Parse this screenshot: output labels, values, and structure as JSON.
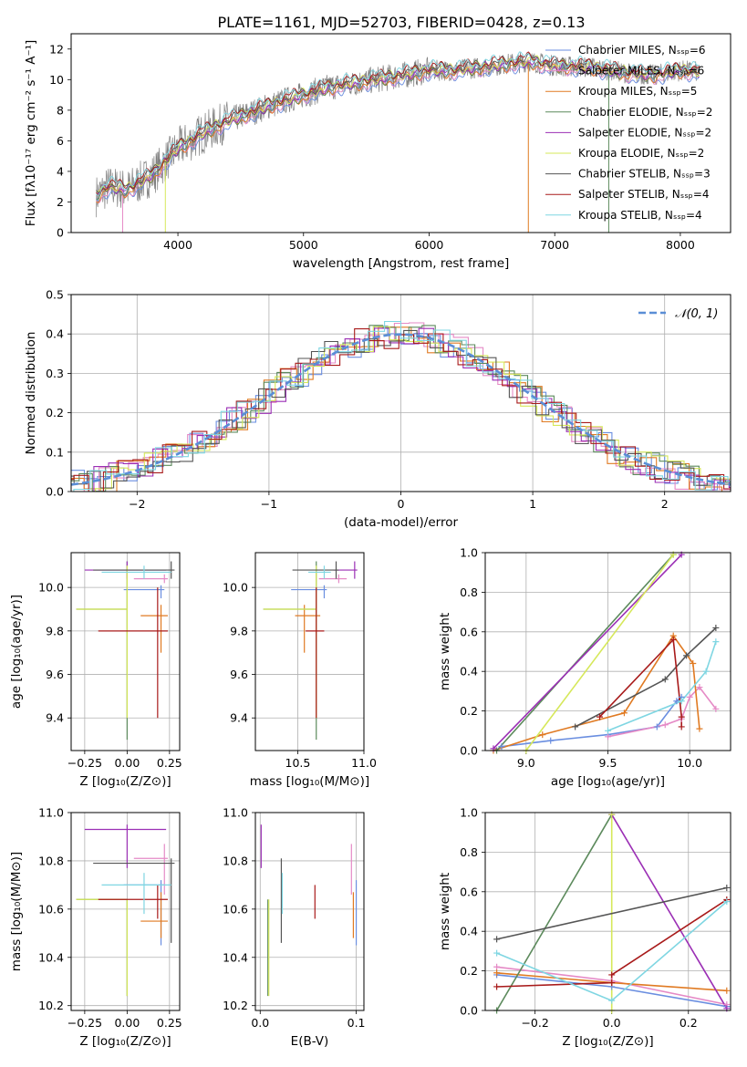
{
  "colors": {
    "chabrier_miles": "#6a8ee0",
    "salpeter_miles": "#e58ac6",
    "kroupa_miles": "#e07a22",
    "chabrier_elodie": "#5c8a5c",
    "salpeter_elodie": "#9b2fb5",
    "kroupa_elodie": "#d6e85a",
    "chabrier_stelib": "#555555",
    "salpeter_stelib": "#a81a1a",
    "kroupa_stelib": "#7fd6e2",
    "data": "#808080",
    "normal": "#5a8ed6"
  },
  "chart_data": [
    {
      "id": "spectrum",
      "type": "line",
      "title": "PLATE=1161, MJD=52703, FIBERID=0428, z=0.13",
      "xlabel": "wavelength [Angstrom, rest frame]",
      "ylabel": "Flux [fλ10⁻¹⁷ erg cm⁻² s⁻¹ A⁻¹]",
      "xlim": [
        3150,
        8400
      ],
      "ylim": [
        0,
        13
      ],
      "xticks": [
        "4000",
        "5000",
        "6000",
        "7000",
        "8000"
      ],
      "yticks": [
        "0",
        "2",
        "4",
        "6",
        "8",
        "10",
        "12"
      ],
      "legend": [
        "Chabrier MILES, Nₛₛₚ=6",
        "Salpeter MILES, Nₛₛₚ=6",
        "Kroupa MILES, Nₛₛₚ=5",
        "Chabrier ELODIE, Nₛₛₚ=2",
        "Salpeter ELODIE, Nₛₛₚ=2",
        "Kroupa ELODIE, Nₛₛₚ=2",
        "Chabrier STELIB, Nₛₛₚ=3",
        "Salpeter STELIB, Nₛₛₚ=4",
        "Kroupa STELIB, Nₛₛₚ=4"
      ],
      "legend_placement": "right",
      "continuum": {
        "x": [
          3350,
          3450,
          3600,
          3800,
          4000,
          4200,
          4400,
          4600,
          4800,
          5000,
          5200,
          5500,
          5800,
          6000,
          6200,
          6500,
          6800,
          7000,
          7300,
          7600,
          7800,
          8000,
          8150
        ],
        "y": [
          2.4,
          3.0,
          2.8,
          3.8,
          5.5,
          6.5,
          7.3,
          7.9,
          8.5,
          9.0,
          9.5,
          9.9,
          10.3,
          10.6,
          10.6,
          10.9,
          11.2,
          10.9,
          10.8,
          10.4,
          10.3,
          10.6,
          10.5
        ]
      }
    },
    {
      "id": "residuals",
      "type": "histogram",
      "xlabel": "(data-model)/error",
      "ylabel": "Normed distribution",
      "xlim": [
        -2.5,
        2.5
      ],
      "ylim": [
        0,
        0.5
      ],
      "xticks": [
        "−2",
        "−1",
        "0",
        "1",
        "2"
      ],
      "yticks": [
        "0.0",
        "0.1",
        "0.2",
        "0.3",
        "0.4",
        "0.5"
      ],
      "legend": [
        "𝒩(0, 1)"
      ],
      "legend_placement": "top-right",
      "grid": true
    },
    {
      "id": "age_vs_Z",
      "type": "errorbar",
      "xlabel": "Z [log₁₀(Z/Z⊙)]",
      "ylabel": "age  [log₁₀(age/yr)]",
      "xlim": [
        -0.33,
        0.31
      ],
      "ylim": [
        9.25,
        10.16
      ],
      "xticks": [
        "−0.25",
        "0.00",
        "0.25"
      ],
      "yticks": [
        "9.4",
        "9.6",
        "9.8",
        "10.0"
      ],
      "grid": true
    },
    {
      "id": "age_vs_mass",
      "type": "errorbar",
      "xlabel": "mass [log₁₀(M/M⊙)]",
      "ylabel": "",
      "xlim": [
        10.18,
        11.0
      ],
      "ylim": [
        9.25,
        10.16
      ],
      "xticks": [
        "10.5",
        "11.0"
      ],
      "yticks": [
        "9.4",
        "9.6",
        "9.8",
        "10.0"
      ],
      "grid": true
    },
    {
      "id": "weight_vs_age",
      "type": "line",
      "xlabel": "age  [log₁₀(age/yr)]",
      "ylabel": "mass weight",
      "xlim": [
        8.75,
        10.25
      ],
      "ylim": [
        0,
        1
      ],
      "xticks": [
        "9.0",
        "9.5",
        "10.0"
      ],
      "yticks": [
        "0.0",
        "0.2",
        "0.4",
        "0.6",
        "0.8",
        "1.0"
      ],
      "grid": true
    },
    {
      "id": "mass_vs_Z",
      "type": "errorbar",
      "xlabel": "Z [log₁₀(Z/Z⊙)]",
      "ylabel": "mass [log₁₀(M/M⊙)]",
      "xlim": [
        -0.33,
        0.31
      ],
      "ylim": [
        10.18,
        11.0
      ],
      "xticks": [
        "−0.25",
        "0.00",
        "0.25"
      ],
      "yticks": [
        "10.2",
        "10.4",
        "10.6",
        "10.8",
        "11.0"
      ],
      "grid": true
    },
    {
      "id": "mass_vs_ebv",
      "type": "errorbar",
      "xlabel": "E(B-V)",
      "ylabel": "",
      "xlim": [
        -0.005,
        0.108
      ],
      "ylim": [
        10.18,
        11.0
      ],
      "xticks": [
        "0.0",
        "0.1"
      ],
      "yticks": [
        "10.2",
        "10.4",
        "10.6",
        "10.8",
        "11.0"
      ],
      "grid": true
    },
    {
      "id": "weight_vs_Z",
      "type": "line",
      "xlabel": "Z [log₁₀(Z/Z⊙)]",
      "ylabel": "mass weight",
      "xlim": [
        -0.33,
        0.31
      ],
      "ylim": [
        0,
        1
      ],
      "xticks": [
        "−0.2",
        "0.0",
        "0.2"
      ],
      "yticks": [
        "0.0",
        "0.2",
        "0.4",
        "0.6",
        "0.8",
        "1.0"
      ],
      "grid": true
    }
  ],
  "models": [
    {
      "key": "chabrier_miles",
      "ebv": 0.1,
      "Z": 0.2,
      "Zerr": [
        0.22,
        0.02
      ],
      "age": 9.99,
      "ageErr": [
        0.04,
        0.02
      ],
      "mass": 10.7,
      "massErr": [
        0.25,
        0.02
      ],
      "w_age": [
        [
          8.85,
          0.02
        ],
        [
          9.15,
          0.05
        ],
        [
          9.5,
          0.08
        ],
        [
          9.8,
          0.12
        ],
        [
          9.92,
          0.25
        ],
        [
          9.95,
          0.27
        ]
      ],
      "w_Z": [
        [
          -0.3,
          0.18
        ],
        [
          0.0,
          0.12
        ],
        [
          0.3,
          0.02
        ]
      ]
    },
    {
      "key": "salpeter_miles",
      "ebv": 0.095,
      "Z": 0.22,
      "Zerr": [
        0.18,
        0.02
      ],
      "age": 10.04,
      "ageErr": [
        0.02,
        0.02
      ],
      "mass": 10.81,
      "massErr": [
        0.15,
        0.06
      ],
      "w_age": [
        [
          9.5,
          0.07
        ],
        [
          9.85,
          0.13
        ],
        [
          9.95,
          0.16
        ],
        [
          10.0,
          0.27
        ],
        [
          10.06,
          0.32
        ],
        [
          10.16,
          0.21
        ]
      ],
      "w_Z": [
        [
          -0.3,
          0.22
        ],
        [
          0.0,
          0.15
        ],
        [
          0.3,
          0.03
        ]
      ]
    },
    {
      "key": "kroupa_miles",
      "ebv": 0.097,
      "Z": 0.2,
      "Zerr": [
        0.12,
        0.04
      ],
      "age": 9.87,
      "ageErr": [
        0.17,
        0.05
      ],
      "mass": 10.55,
      "massErr": [
        0.07,
        0.12
      ],
      "w_age": [
        [
          8.8,
          0.0
        ],
        [
          9.1,
          0.08
        ],
        [
          9.6,
          0.19
        ],
        [
          9.9,
          0.58
        ],
        [
          10.02,
          0.44
        ],
        [
          10.06,
          0.11
        ]
      ],
      "w_Z": [
        [
          -0.3,
          0.19
        ],
        [
          0.0,
          0.14
        ],
        [
          0.3,
          0.1
        ]
      ]
    },
    {
      "key": "chabrier_elodie",
      "ebv": 0.008,
      "Z": 0.0,
      "Zerr": [
        0.3,
        0.0
      ],
      "age": 9.9,
      "ageErr": [
        0.6,
        0.22
      ],
      "mass": 10.64,
      "massErr": [
        0.4,
        0.0
      ],
      "w_age": [
        [
          8.82,
          0.0
        ],
        [
          9.9,
          0.99
        ]
      ],
      "w_Z": [
        [
          -0.3,
          0.0
        ],
        [
          0.0,
          0.99
        ]
      ]
    },
    {
      "key": "salpeter_elodie",
      "ebv": 0.001,
      "Z": 0.0,
      "Zerr": [
        0.25,
        0.23
      ],
      "age": 10.08,
      "ageErr": [
        0.04,
        0.04
      ],
      "mass": 10.93,
      "massErr": [
        0.16,
        0.02
      ],
      "w_age": [
        [
          8.8,
          0.01
        ],
        [
          9.95,
          0.99
        ]
      ],
      "w_Z": [
        [
          0.0,
          0.99
        ],
        [
          0.3,
          0.01
        ]
      ]
    },
    {
      "key": "kroupa_elodie",
      "ebv": 0.009,
      "Z": 0.0,
      "Zerr": [
        0.3,
        0.0
      ],
      "age": 9.9,
      "ageErr": [
        0.5,
        0.2
      ],
      "mass": 10.64,
      "massErr": [
        0.4,
        0.0
      ],
      "w_age": [
        [
          9.0,
          0.0
        ],
        [
          9.9,
          0.99
        ]
      ],
      "w_Z": [
        [
          0.0,
          0.99
        ],
        [
          0.0,
          0.0
        ]
      ]
    },
    {
      "key": "chabrier_stelib",
      "ebv": 0.022,
      "Z": 0.26,
      "Zerr": [
        0.46,
        0.02
      ],
      "age": 10.08,
      "ageErr": [
        0.04,
        0.04
      ],
      "mass": 10.79,
      "massErr": [
        0.33,
        0.02
      ],
      "w_age": [
        [
          9.3,
          0.12
        ],
        [
          9.85,
          0.36
        ],
        [
          9.98,
          0.48
        ],
        [
          10.16,
          0.62
        ]
      ],
      "w_Z": [
        [
          -0.3,
          0.36
        ],
        [
          0.3,
          0.62
        ]
      ]
    },
    {
      "key": "salpeter_stelib",
      "ebv": 0.057,
      "Z": 0.18,
      "Zerr": [
        0.35,
        0.06
      ],
      "age": 9.8,
      "ageErr": [
        0.4,
        0.2
      ],
      "mass": 10.64,
      "massErr": [
        0.08,
        0.06
      ],
      "w_age": [
        [
          9.45,
          0.17
        ],
        [
          9.9,
          0.56
        ],
        [
          9.95,
          0.17
        ],
        [
          9.95,
          0.12
        ]
      ],
      "w_Z": [
        [
          -0.3,
          0.12
        ],
        [
          0.0,
          0.14
        ],
        [
          0.0,
          0.18
        ],
        [
          0.3,
          0.56
        ]
      ]
    },
    {
      "key": "kroupa_stelib",
      "ebv": 0.023,
      "Z": 0.1,
      "Zerr": [
        0.25,
        0.16
      ],
      "age": 10.07,
      "ageErr": [
        0.03,
        0.03
      ],
      "mass": 10.7,
      "massErr": [
        0.12,
        0.05
      ],
      "w_age": [
        [
          9.5,
          0.1
        ],
        [
          9.95,
          0.25
        ],
        [
          10.1,
          0.4
        ],
        [
          10.16,
          0.55
        ]
      ],
      "w_Z": [
        [
          -0.3,
          0.29
        ],
        [
          0.0,
          0.05
        ],
        [
          0.3,
          0.55
        ]
      ]
    }
  ]
}
